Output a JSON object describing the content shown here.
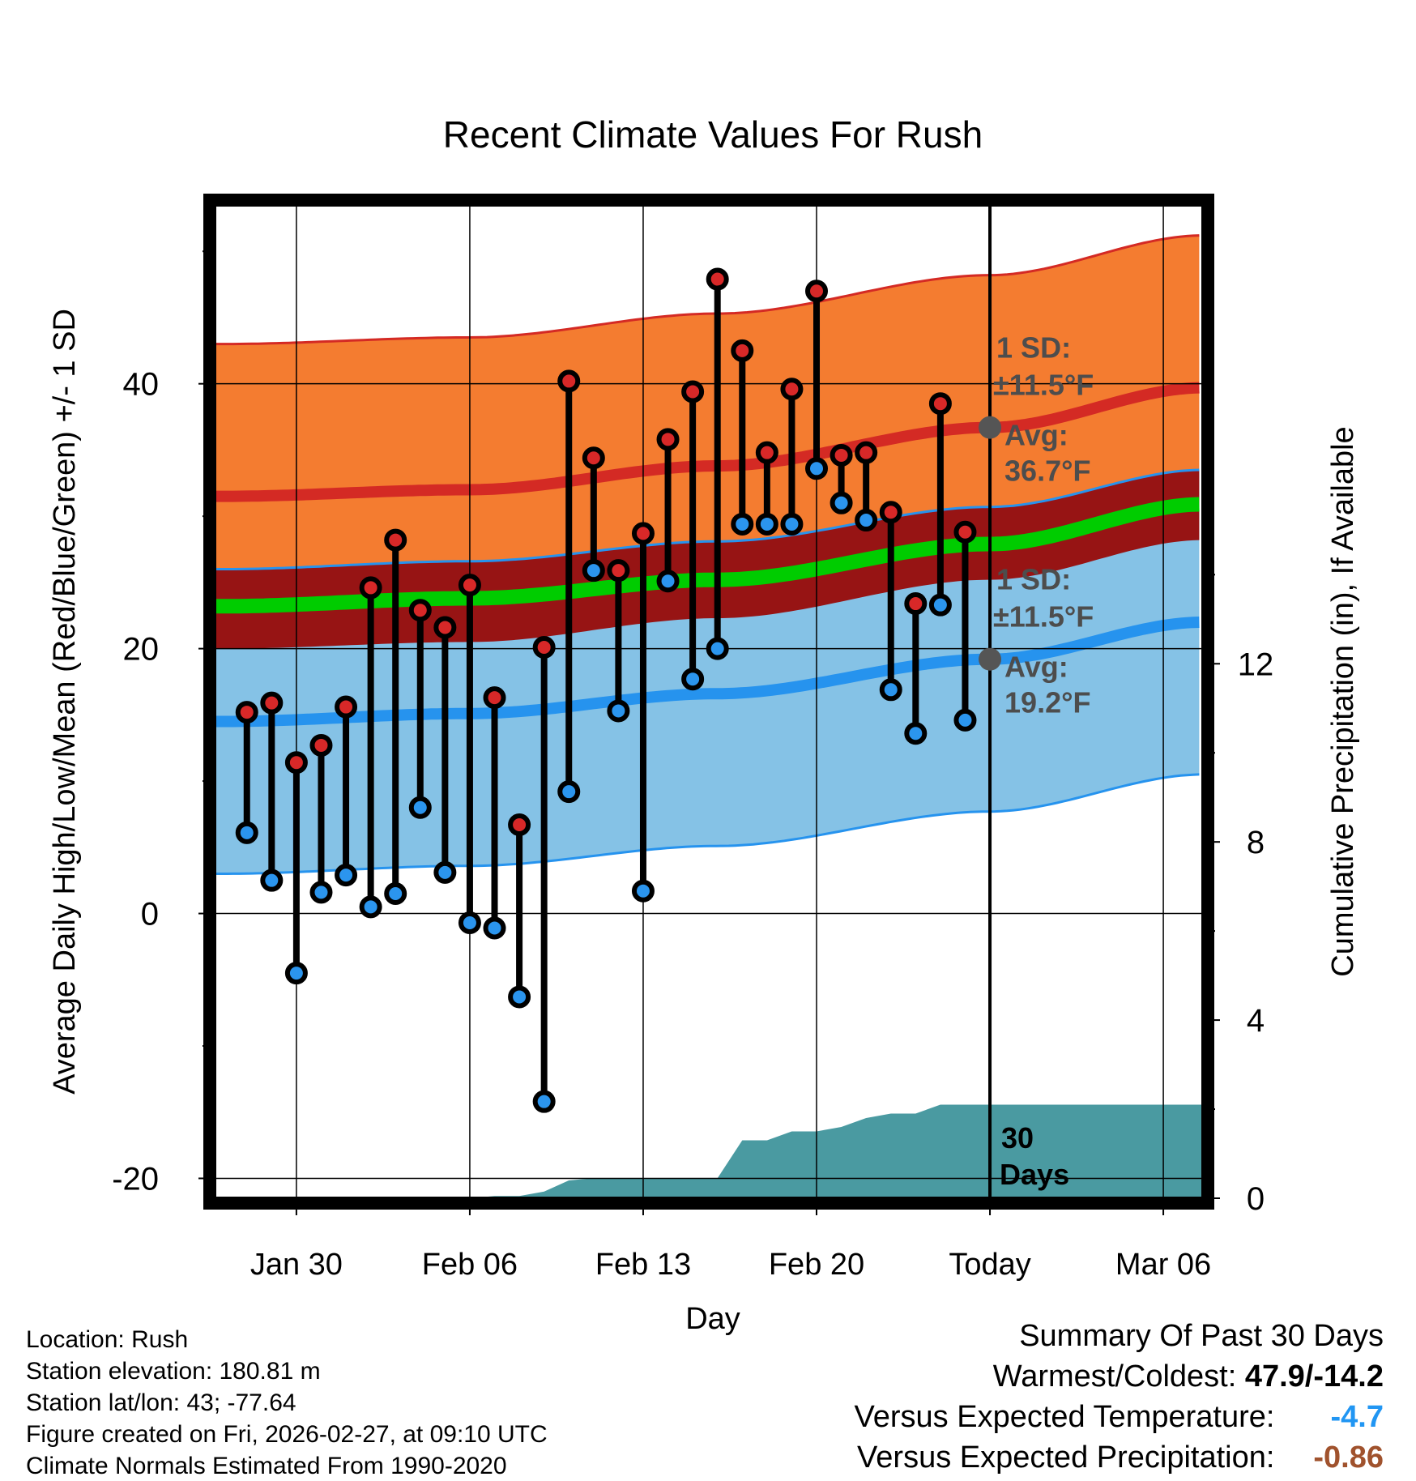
{
  "chart_data": {
    "type": "range-dot",
    "title": "Recent Climate Values For Rush",
    "xlabel": "Day",
    "ylabel_left": "Average Daily High/Low/Mean (Red/Blue/Green) +/- 1 SD",
    "ylabel_right": "Cumulative Precipitation (in), If Available",
    "ylim_left": [
      -21.5,
      53.5
    ],
    "ylim_right": [
      0,
      22.3
    ],
    "x_ticks": [
      {
        "day": 3,
        "label": "Jan 30"
      },
      {
        "day": 10,
        "label": "Feb 06"
      },
      {
        "day": 17,
        "label": "Feb 13"
      },
      {
        "day": 24,
        "label": "Feb 20"
      },
      {
        "day": 31,
        "label": "Today"
      },
      {
        "day": 38,
        "label": "Mar 06"
      }
    ],
    "x_range": [
      -0.3,
      39.6
    ],
    "y_ticks_left": [
      -20,
      0,
      20,
      40
    ],
    "y_ticks_right": [
      0,
      4,
      8,
      12
    ],
    "today_day": 31,
    "daily_highs": [
      15.2,
      15.9,
      11.4,
      12.7,
      15.6,
      24.6,
      28.2,
      22.9,
      21.6,
      24.8,
      16.3,
      6.7,
      20.1,
      40.2,
      34.4,
      25.9,
      28.7,
      35.8,
      39.4,
      47.9,
      42.5,
      34.8,
      39.6,
      47.0,
      34.6,
      34.8,
      30.3,
      23.4,
      38.5,
      28.8
    ],
    "daily_lows": [
      6.1,
      2.5,
      -4.5,
      1.6,
      2.9,
      0.5,
      1.5,
      8.0,
      3.1,
      -0.7,
      -1.1,
      -6.3,
      -14.2,
      9.2,
      25.9,
      15.3,
      1.7,
      25.1,
      17.7,
      20.0,
      29.4,
      29.4,
      29.4,
      33.6,
      31.0,
      29.7,
      16.9,
      13.6,
      23.3,
      14.6
    ],
    "normal_high": {
      "days": [
        0,
        10,
        20,
        31,
        39.6
      ],
      "values": [
        31.5,
        32.0,
        33.8,
        36.7,
        39.7
      ]
    },
    "normal_high_sd": 11.5,
    "normal_low": {
      "days": [
        0,
        10,
        20,
        31,
        39.6
      ],
      "values": [
        14.5,
        15.1,
        16.6,
        19.2,
        22.0
      ]
    },
    "normal_low_sd": 11.5,
    "normal_mean": {
      "days": [
        0,
        10,
        20,
        31,
        39.6
      ],
      "values": [
        23.2,
        23.8,
        25.2,
        27.9,
        30.9
      ]
    },
    "cumulative_precip": {
      "days": [
        0,
        10,
        11,
        12,
        13,
        14,
        15,
        20,
        21,
        22,
        23,
        24,
        25,
        26,
        27,
        28,
        29,
        30,
        39.6
      ],
      "values": [
        0,
        0,
        0.05,
        0.05,
        0.15,
        0.4,
        0.45,
        0.45,
        1.3,
        1.3,
        1.5,
        1.5,
        1.6,
        1.8,
        1.9,
        1.9,
        2.1,
        2.1,
        2.1
      ]
    },
    "annotations": {
      "high_sd_label": "1 SD:",
      "high_sd_value": "±11.5°F",
      "high_avg_label": "Avg:",
      "high_avg_value": "36.7°F",
      "low_sd_label": "1 SD:",
      "low_sd_value": "±11.5°F",
      "low_avg_label": "Avg:",
      "low_avg_value": "19.2°F",
      "days_line1": "30",
      "days_line2": "Days"
    },
    "colors": {
      "high_band": "#f47c30",
      "low_band": "#85c2e6",
      "overlap_band": "#971414",
      "mean_line": "#00cc00",
      "high_line": "#d42a24",
      "low_line": "#2693ee",
      "precip": "#4a9aa1",
      "annotation": "#4d4d4d",
      "dot_high": "#d82828",
      "dot_low": "#2b95ee"
    }
  },
  "info": {
    "location": "Location: Rush",
    "elevation": "Station elevation: 180.81 m",
    "latlon": "Station lat/lon: 43; -77.64",
    "created": "Figure created on Fri, 2026-02-27, at 09:10 UTC",
    "normals": "Climate Normals Estimated From 1990-2020"
  },
  "summary": {
    "heading": "Summary Of Past 30 Days",
    "warm_cold_label": "Warmest/Coldest:",
    "warm_cold_value": "47.9/-14.2",
    "temp_label": "Versus Expected Temperature:",
    "temp_value": "-4.7",
    "temp_color": "#2196f3",
    "precip_label": "Versus Expected Precipitation:",
    "precip_value": "-0.86",
    "precip_color": "#a0522d"
  }
}
